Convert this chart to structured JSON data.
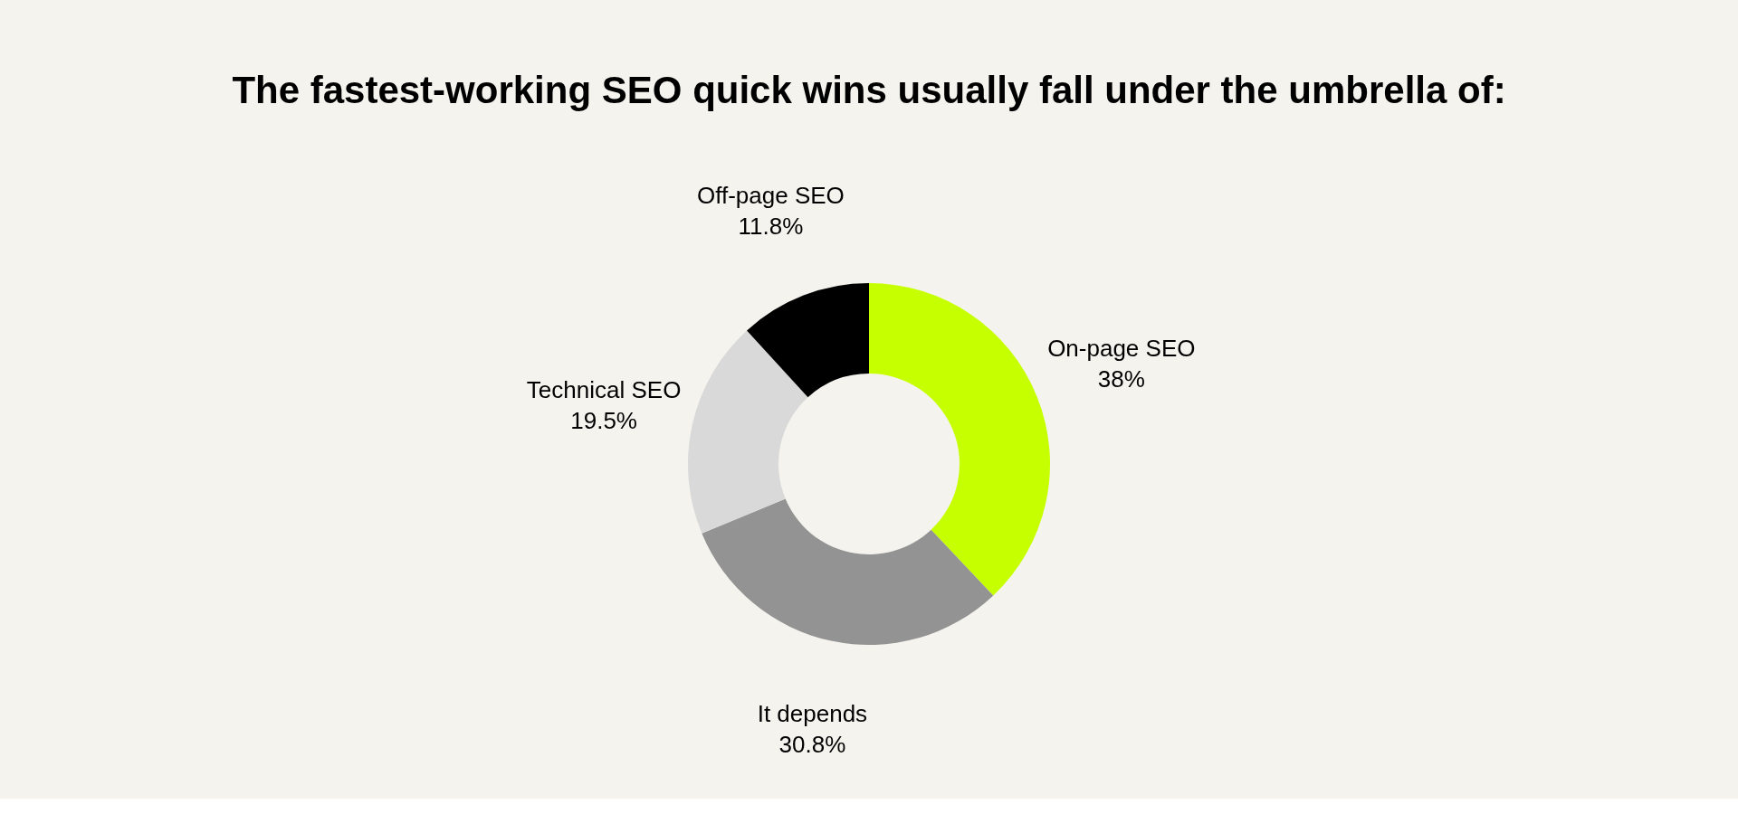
{
  "chart_data": {
    "type": "donut",
    "title": "The fastest-working SEO quick wins usually fall under the umbrella of:",
    "categories": [
      "On-page SEO",
      "It depends",
      "Technical SEO",
      "Off-page SEO"
    ],
    "values": [
      38,
      30.8,
      19.5,
      11.8
    ],
    "value_labels": [
      "38%",
      "30.8%",
      "19.5%",
      "11.8%"
    ],
    "colors": [
      "#c6ff00",
      "#939393",
      "#d9d9d9",
      "#000000"
    ],
    "legend": false
  }
}
